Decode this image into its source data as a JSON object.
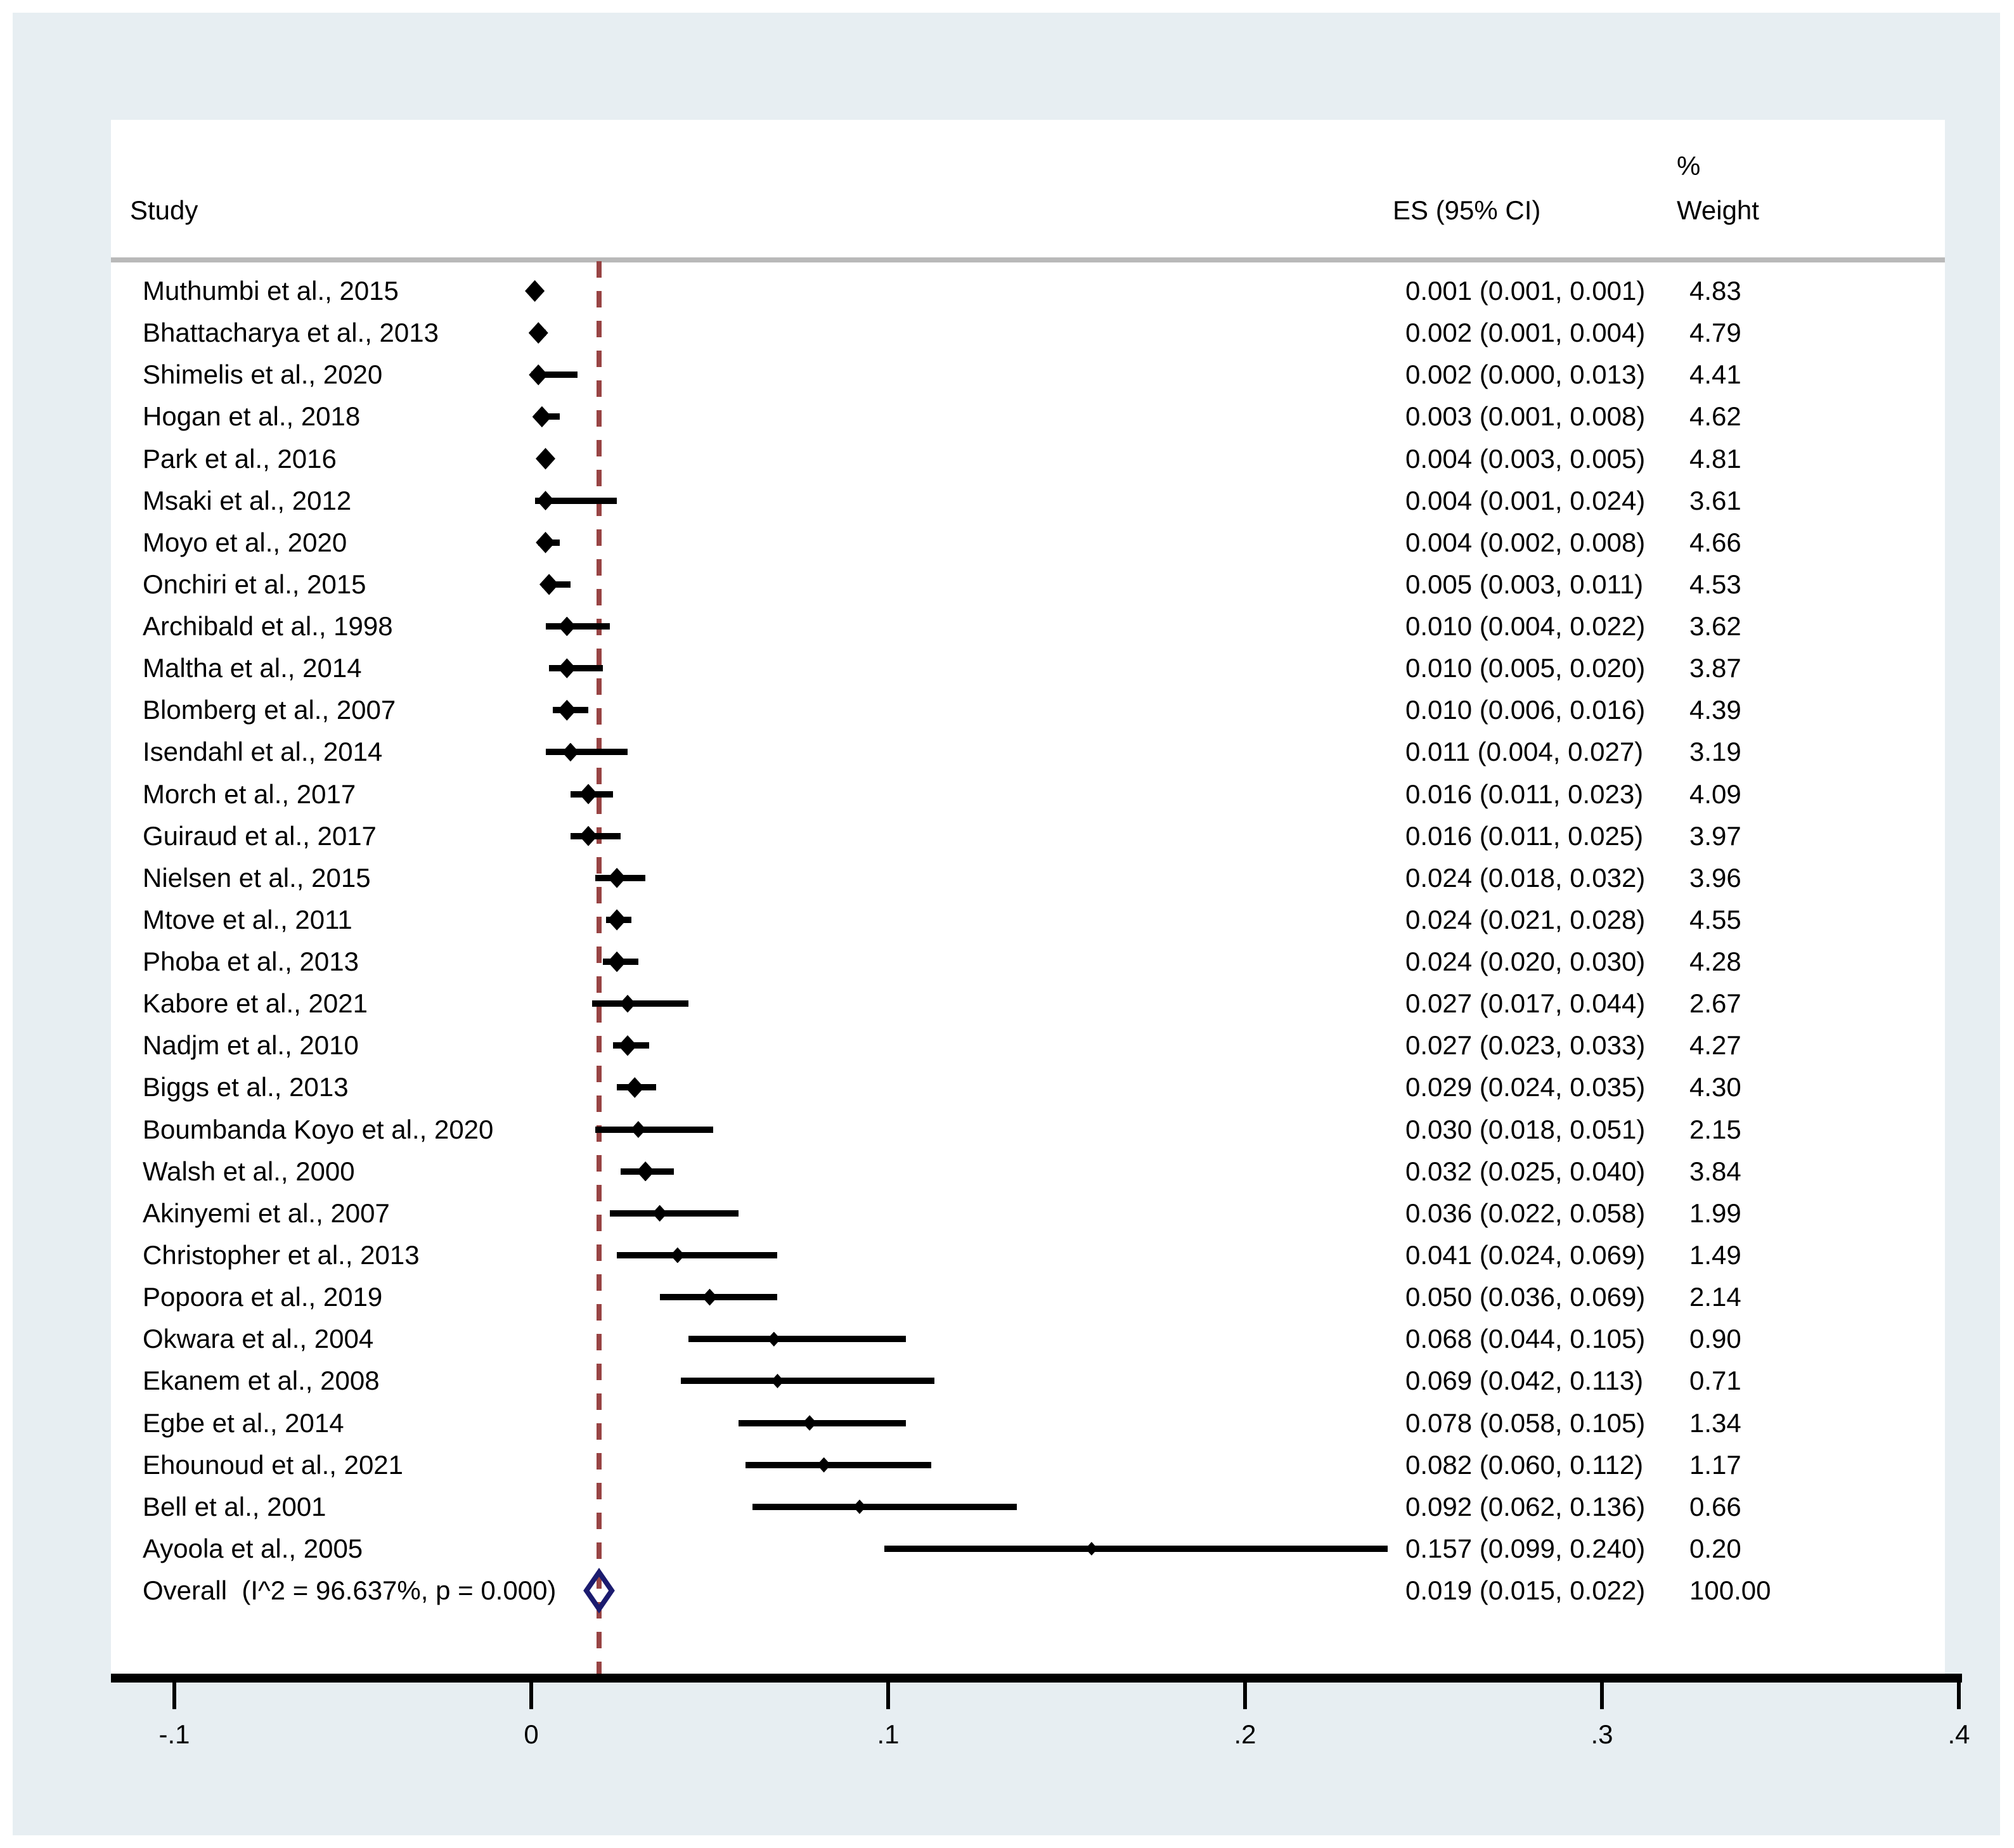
{
  "columns": {
    "study": "Study",
    "es": "ES (95% CI)",
    "pct": "%",
    "weight": "Weight"
  },
  "colors": {
    "figure_background": "#e7eef2",
    "plot_background": "#ffffff",
    "separator_gray": "#b9b9b9",
    "ref_line_maroon": "#984444",
    "overall_diamond_navy": "#1b1b6f",
    "marker_black": "#000000"
  },
  "chart_data": {
    "type": "forest",
    "title": "",
    "xlabel": "",
    "x_axis": {
      "ticks": [
        {
          "label": "-.1",
          "value": -0.1
        },
        {
          "label": "0",
          "value": 0.0
        },
        {
          "label": ".1",
          "value": 0.1
        },
        {
          "label": ".2",
          "value": 0.2
        },
        {
          "label": ".3",
          "value": 0.3
        },
        {
          "label": ".4",
          "value": 0.4
        }
      ],
      "xlim": [
        -0.1,
        0.4
      ]
    },
    "ref_line_value": 0.019,
    "studies": [
      {
        "label": "Muthumbi et al., 2015",
        "es": 0.001,
        "lo": 0.001,
        "hi": 0.001,
        "es_text": "0.001 (0.001, 0.001)",
        "weight_text": "4.83",
        "weight": 4.83
      },
      {
        "label": "Bhattacharya et al., 2013",
        "es": 0.002,
        "lo": 0.001,
        "hi": 0.004,
        "es_text": "0.002 (0.001, 0.004)",
        "weight_text": "4.79",
        "weight": 4.79
      },
      {
        "label": "Shimelis et al., 2020",
        "es": 0.002,
        "lo": 0.0,
        "hi": 0.013,
        "es_text": "0.002 (0.000, 0.013)",
        "weight_text": "4.41",
        "weight": 4.41
      },
      {
        "label": "Hogan et al., 2018",
        "es": 0.003,
        "lo": 0.001,
        "hi": 0.008,
        "es_text": "0.003 (0.001, 0.008)",
        "weight_text": "4.62",
        "weight": 4.62
      },
      {
        "label": "Park et al., 2016",
        "es": 0.004,
        "lo": 0.003,
        "hi": 0.005,
        "es_text": "0.004 (0.003, 0.005)",
        "weight_text": "4.81",
        "weight": 4.81
      },
      {
        "label": "Msaki et al., 2012",
        "es": 0.004,
        "lo": 0.001,
        "hi": 0.024,
        "es_text": "0.004 (0.001, 0.024)",
        "weight_text": "3.61",
        "weight": 3.61
      },
      {
        "label": "Moyo et al., 2020",
        "es": 0.004,
        "lo": 0.002,
        "hi": 0.008,
        "es_text": "0.004 (0.002, 0.008)",
        "weight_text": "4.66",
        "weight": 4.66
      },
      {
        "label": "Onchiri et al., 2015",
        "es": 0.005,
        "lo": 0.003,
        "hi": 0.011,
        "es_text": "0.005 (0.003, 0.011)",
        "weight_text": "4.53",
        "weight": 4.53
      },
      {
        "label": "Archibald et al., 1998",
        "es": 0.01,
        "lo": 0.004,
        "hi": 0.022,
        "es_text": "0.010 (0.004, 0.022)",
        "weight_text": "3.62",
        "weight": 3.62
      },
      {
        "label": "Maltha et al., 2014",
        "es": 0.01,
        "lo": 0.005,
        "hi": 0.02,
        "es_text": "0.010 (0.005, 0.020)",
        "weight_text": "3.87",
        "weight": 3.87
      },
      {
        "label": "Blomberg et al., 2007",
        "es": 0.01,
        "lo": 0.006,
        "hi": 0.016,
        "es_text": "0.010 (0.006, 0.016)",
        "weight_text": "4.39",
        "weight": 4.39
      },
      {
        "label": "Isendahl et al., 2014",
        "es": 0.011,
        "lo": 0.004,
        "hi": 0.027,
        "es_text": "0.011 (0.004, 0.027)",
        "weight_text": "3.19",
        "weight": 3.19
      },
      {
        "label": "Morch et al., 2017",
        "es": 0.016,
        "lo": 0.011,
        "hi": 0.023,
        "es_text": "0.016 (0.011, 0.023)",
        "weight_text": "4.09",
        "weight": 4.09
      },
      {
        "label": "Guiraud et al., 2017",
        "es": 0.016,
        "lo": 0.011,
        "hi": 0.025,
        "es_text": "0.016 (0.011, 0.025)",
        "weight_text": "3.97",
        "weight": 3.97
      },
      {
        "label": "Nielsen et al., 2015",
        "es": 0.024,
        "lo": 0.018,
        "hi": 0.032,
        "es_text": "0.024 (0.018, 0.032)",
        "weight_text": "3.96",
        "weight": 3.96
      },
      {
        "label": "Mtove et al., 2011",
        "es": 0.024,
        "lo": 0.021,
        "hi": 0.028,
        "es_text": "0.024 (0.021, 0.028)",
        "weight_text": "4.55",
        "weight": 4.55
      },
      {
        "label": "Phoba et al., 2013",
        "es": 0.024,
        "lo": 0.02,
        "hi": 0.03,
        "es_text": "0.024 (0.020, 0.030)",
        "weight_text": "4.28",
        "weight": 4.28
      },
      {
        "label": "Kabore et al., 2021",
        "es": 0.027,
        "lo": 0.017,
        "hi": 0.044,
        "es_text": "0.027 (0.017, 0.044)",
        "weight_text": "2.67",
        "weight": 2.67
      },
      {
        "label": "Nadjm et al., 2010",
        "es": 0.027,
        "lo": 0.023,
        "hi": 0.033,
        "es_text": "0.027 (0.023, 0.033)",
        "weight_text": "4.27",
        "weight": 4.27
      },
      {
        "label": "Biggs et al., 2013",
        "es": 0.029,
        "lo": 0.024,
        "hi": 0.035,
        "es_text": "0.029 (0.024, 0.035)",
        "weight_text": "4.30",
        "weight": 4.3
      },
      {
        "label": "Boumbanda Koyo et al., 2020",
        "es": 0.03,
        "lo": 0.018,
        "hi": 0.051,
        "es_text": "0.030 (0.018, 0.051)",
        "weight_text": "2.15",
        "weight": 2.15
      },
      {
        "label": "Walsh et al., 2000",
        "es": 0.032,
        "lo": 0.025,
        "hi": 0.04,
        "es_text": "0.032 (0.025, 0.040)",
        "weight_text": "3.84",
        "weight": 3.84
      },
      {
        "label": "Akinyemi et al., 2007",
        "es": 0.036,
        "lo": 0.022,
        "hi": 0.058,
        "es_text": "0.036 (0.022, 0.058)",
        "weight_text": "1.99",
        "weight": 1.99
      },
      {
        "label": "Christopher et al., 2013",
        "es": 0.041,
        "lo": 0.024,
        "hi": 0.069,
        "es_text": "0.041 (0.024, 0.069)",
        "weight_text": "1.49",
        "weight": 1.49
      },
      {
        "label": "Popoora et al., 2019",
        "es": 0.05,
        "lo": 0.036,
        "hi": 0.069,
        "es_text": "0.050 (0.036, 0.069)",
        "weight_text": "2.14",
        "weight": 2.14
      },
      {
        "label": "Okwara et al., 2004",
        "es": 0.068,
        "lo": 0.044,
        "hi": 0.105,
        "es_text": "0.068 (0.044, 0.105)",
        "weight_text": "0.90",
        "weight": 0.9
      },
      {
        "label": "Ekanem et al., 2008",
        "es": 0.069,
        "lo": 0.042,
        "hi": 0.113,
        "es_text": "0.069 (0.042, 0.113)",
        "weight_text": "0.71",
        "weight": 0.71
      },
      {
        "label": "Egbe et al., 2014",
        "es": 0.078,
        "lo": 0.058,
        "hi": 0.105,
        "es_text": "0.078 (0.058, 0.105)",
        "weight_text": "1.34",
        "weight": 1.34
      },
      {
        "label": "Ehounoud et al., 2021",
        "es": 0.082,
        "lo": 0.06,
        "hi": 0.112,
        "es_text": "0.082 (0.060, 0.112)",
        "weight_text": "1.17",
        "weight": 1.17
      },
      {
        "label": "Bell et al., 2001",
        "es": 0.092,
        "lo": 0.062,
        "hi": 0.136,
        "es_text": "0.092 (0.062, 0.136)",
        "weight_text": "0.66",
        "weight": 0.66
      },
      {
        "label": "Ayoola et al., 2005",
        "es": 0.157,
        "lo": 0.099,
        "hi": 0.24,
        "es_text": "0.157 (0.099, 0.240)",
        "weight_text": "0.20",
        "weight": 0.2
      }
    ],
    "overall": {
      "label": "Overall  (I^2 = 96.637%, p = 0.000)",
      "es": 0.019,
      "lo": 0.015,
      "hi": 0.022,
      "es_text": "0.019 (0.015, 0.022)",
      "weight_text": "100.00"
    }
  }
}
